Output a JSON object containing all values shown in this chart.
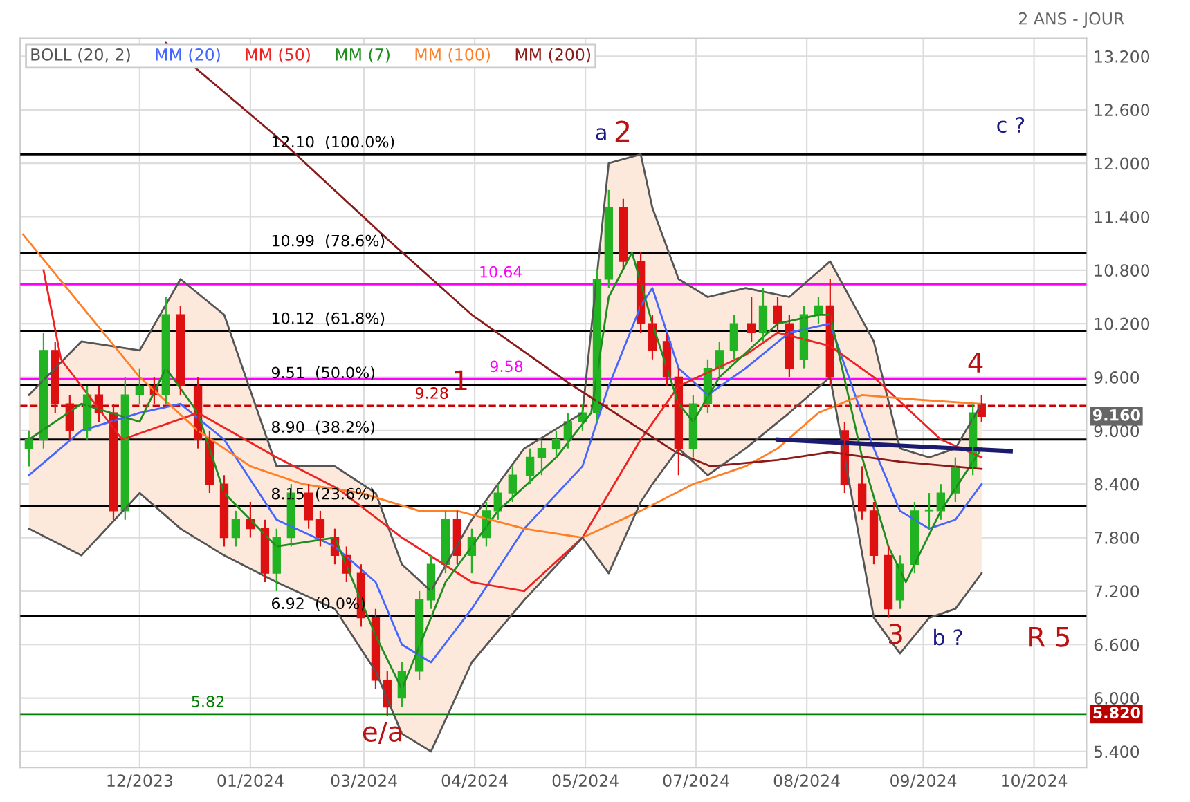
{
  "chart_data": {
    "type": "candlestick",
    "subtitle": "2 ANS - JOUR",
    "x": [
      "2023-11-15",
      "2023-11-20",
      "2023-11-24",
      "2023-11-29",
      "2023-12-05",
      "2023-12-09",
      "2023-12-14",
      "2023-12-18",
      "2023-12-23",
      "2023-12-28",
      "2024-01-01",
      "2024-01-06",
      "2024-01-12",
      "2024-01-16",
      "2024-01-21",
      "2024-01-25",
      "2024-01-30",
      "2024-02-04",
      "2024-02-08",
      "2024-02-13",
      "2024-02-19",
      "2024-02-23",
      "2024-02-28",
      "2024-03-03",
      "2024-03-08",
      "2024-03-13",
      "2024-03-17",
      "2024-03-22",
      "2024-03-28",
      "2024-04-01",
      "2024-04-06",
      "2024-04-10",
      "2024-04-15",
      "2024-04-20",
      "2024-04-24",
      "2024-04-29",
      "2024-05-05",
      "2024-05-09",
      "2024-05-14",
      "2024-05-18",
      "2024-05-23",
      "2024-05-28",
      "2024-06-01",
      "2024-06-06",
      "2024-06-12",
      "2024-06-16",
      "2024-06-21",
      "2024-06-25",
      "2024-06-30",
      "2024-07-05",
      "2024-07-09",
      "2024-07-14",
      "2024-07-20",
      "2024-07-24",
      "2024-07-29",
      "2024-08-02",
      "2024-08-07",
      "2024-08-12",
      "2024-08-16",
      "2024-08-21",
      "2024-08-27",
      "2024-08-31",
      "2024-09-05",
      "2024-09-09",
      "2024-09-14",
      "2024-09-19",
      "2024-09-23",
      "2024-09-28",
      "2024-10-04",
      "2024-10-07"
    ],
    "ohlc": [
      [
        8.8,
        9.0,
        8.6,
        8.9
      ],
      [
        8.9,
        10.1,
        8.8,
        9.9
      ],
      [
        9.9,
        10.0,
        9.2,
        9.3
      ],
      [
        9.3,
        9.4,
        8.9,
        9.0
      ],
      [
        9.0,
        9.5,
        8.9,
        9.4
      ],
      [
        9.4,
        9.5,
        9.1,
        9.2
      ],
      [
        9.2,
        9.3,
        8.0,
        8.1
      ],
      [
        8.1,
        9.6,
        8.0,
        9.4
      ],
      [
        9.4,
        9.7,
        9.3,
        9.5
      ],
      [
        9.5,
        9.6,
        9.3,
        9.4
      ],
      [
        9.4,
        10.5,
        9.3,
        10.3
      ],
      [
        10.3,
        10.4,
        9.4,
        9.5
      ],
      [
        9.5,
        9.6,
        8.8,
        8.9
      ],
      [
        8.9,
        9.0,
        8.3,
        8.4
      ],
      [
        8.4,
        8.5,
        7.7,
        7.8
      ],
      [
        7.8,
        8.1,
        7.7,
        8.0
      ],
      [
        8.0,
        8.2,
        7.8,
        7.9
      ],
      [
        7.9,
        8.0,
        7.3,
        7.4
      ],
      [
        7.4,
        7.9,
        7.2,
        7.8
      ],
      [
        7.8,
        8.4,
        7.7,
        8.3
      ],
      [
        8.3,
        8.4,
        7.9,
        8.0
      ],
      [
        8.0,
        8.1,
        7.7,
        7.8
      ],
      [
        7.8,
        7.9,
        7.5,
        7.6
      ],
      [
        7.6,
        7.7,
        7.3,
        7.4
      ],
      [
        7.4,
        7.5,
        6.8,
        6.9
      ],
      [
        6.9,
        7.0,
        6.1,
        6.2
      ],
      [
        6.2,
        6.3,
        5.8,
        5.9
      ],
      [
        6.0,
        6.4,
        5.9,
        6.3
      ],
      [
        6.3,
        7.2,
        6.2,
        7.1
      ],
      [
        7.1,
        7.6,
        7.0,
        7.5
      ],
      [
        7.5,
        8.1,
        7.4,
        8.0
      ],
      [
        8.0,
        8.1,
        7.5,
        7.6
      ],
      [
        7.6,
        7.9,
        7.4,
        7.8
      ],
      [
        7.8,
        8.2,
        7.7,
        8.1
      ],
      [
        8.1,
        8.4,
        8.0,
        8.3
      ],
      [
        8.3,
        8.6,
        8.2,
        8.5
      ],
      [
        8.5,
        8.8,
        8.4,
        8.7
      ],
      [
        8.7,
        8.9,
        8.5,
        8.8
      ],
      [
        8.8,
        9.0,
        8.7,
        8.9
      ],
      [
        8.9,
        9.2,
        8.8,
        9.1
      ],
      [
        9.1,
        9.3,
        9.0,
        9.2
      ],
      [
        9.2,
        10.8,
        9.1,
        10.7
      ],
      [
        10.7,
        11.7,
        10.6,
        11.5
      ],
      [
        11.5,
        11.6,
        10.8,
        10.9
      ],
      [
        10.9,
        11.0,
        10.1,
        10.2
      ],
      [
        10.2,
        10.3,
        9.8,
        9.9
      ],
      [
        10.0,
        10.1,
        9.5,
        9.6
      ],
      [
        9.6,
        9.7,
        8.5,
        8.8
      ],
      [
        8.8,
        9.4,
        8.7,
        9.3
      ],
      [
        9.3,
        9.8,
        9.2,
        9.7
      ],
      [
        9.7,
        10.0,
        9.6,
        9.9
      ],
      [
        9.9,
        10.3,
        9.8,
        10.2
      ],
      [
        10.2,
        10.5,
        10.0,
        10.1
      ],
      [
        10.1,
        10.6,
        10.0,
        10.4
      ],
      [
        10.4,
        10.5,
        10.1,
        10.2
      ],
      [
        10.2,
        10.3,
        9.6,
        9.7
      ],
      [
        9.8,
        10.4,
        9.7,
        10.3
      ],
      [
        10.3,
        10.5,
        10.2,
        10.4
      ],
      [
        10.4,
        10.7,
        9.5,
        9.6
      ],
      [
        9.0,
        9.1,
        8.3,
        8.4
      ],
      [
        8.4,
        8.6,
        8.0,
        8.1
      ],
      [
        8.1,
        8.2,
        7.5,
        7.6
      ],
      [
        7.6,
        7.7,
        6.9,
        7.0
      ],
      [
        7.1,
        7.6,
        7.0,
        7.5
      ],
      [
        7.5,
        8.2,
        7.4,
        8.1
      ],
      [
        8.1,
        8.3,
        7.9,
        8.1
      ],
      [
        8.1,
        8.4,
        8.0,
        8.3
      ],
      [
        8.3,
        8.7,
        8.2,
        8.6
      ],
      [
        8.6,
        9.3,
        8.5,
        9.2
      ],
      [
        9.3,
        9.4,
        9.1,
        9.16
      ]
    ],
    "series": [
      {
        "name": "BOLL (20, 2)",
        "type": "line",
        "color": "#555555",
        "x": [
          "2023-11-15",
          "2023-12-03",
          "2023-12-23",
          "2024-01-06",
          "2024-01-21",
          "2024-02-08",
          "2024-02-28",
          "2024-03-13",
          "2024-03-22",
          "2024-04-01",
          "2024-04-15",
          "2024-05-03",
          "2024-05-23",
          "2024-06-01",
          "2024-06-12",
          "2024-06-16",
          "2024-06-25",
          "2024-07-05",
          "2024-07-18",
          "2024-08-02",
          "2024-08-16",
          "2024-08-31",
          "2024-09-09",
          "2024-09-19",
          "2024-09-28",
          "2024-10-07"
        ],
        "values": [
          9.4,
          10.0,
          9.9,
          10.7,
          10.3,
          8.6,
          8.6,
          8.3,
          7.5,
          7.2,
          8.0,
          8.8,
          9.2,
          12.0,
          12.1,
          11.5,
          10.7,
          10.5,
          10.6,
          10.5,
          10.9,
          10.0,
          8.8,
          8.7,
          8.8,
          9.3
        ]
      },
      {
        "name": "MM (20)",
        "type": "line",
        "color": "#4466ff",
        "x": [
          "2023-11-15",
          "2023-12-03",
          "2023-12-23",
          "2024-01-06",
          "2024-01-21",
          "2024-02-08",
          "2024-02-28",
          "2024-03-13",
          "2024-03-22",
          "2024-04-01",
          "2024-04-15",
          "2024-05-03",
          "2024-05-23",
          "2024-06-01",
          "2024-06-12",
          "2024-06-16",
          "2024-06-25",
          "2024-07-05",
          "2024-07-18",
          "2024-08-02",
          "2024-08-16",
          "2024-08-31",
          "2024-09-09",
          "2024-09-19",
          "2024-09-28",
          "2024-10-07"
        ],
        "values": [
          8.5,
          9.0,
          9.2,
          9.3,
          8.9,
          8.0,
          7.7,
          7.3,
          6.6,
          6.4,
          7.0,
          7.9,
          8.6,
          9.5,
          10.4,
          10.6,
          9.7,
          9.4,
          9.7,
          10.1,
          10.2,
          8.8,
          8.1,
          7.9,
          8.0,
          8.4
        ],
        "lower": [
          7.9,
          7.6,
          8.3,
          7.9,
          7.6,
          7.3,
          7.0,
          6.3,
          5.6,
          5.4,
          6.4,
          7.1,
          7.8,
          7.4,
          8.2,
          8.4,
          8.8,
          8.5,
          8.8,
          9.2,
          9.6,
          6.9,
          6.5,
          6.9,
          7.0,
          7.4
        ],
        "upper": [
          9.4,
          10.0,
          9.9,
          10.7,
          10.3,
          8.6,
          8.6,
          8.3,
          7.5,
          7.2,
          8.0,
          8.8,
          9.2,
          12.0,
          12.1,
          11.5,
          10.7,
          10.5,
          10.6,
          10.5,
          10.9,
          10.0,
          8.8,
          8.7,
          8.8,
          9.3
        ]
      },
      {
        "name": "MM (50)",
        "type": "line",
        "color": "#ee2222",
        "x": [
          "2023-11-20",
          "2023-11-26",
          "2023-12-17",
          "2024-01-12",
          "2024-02-08",
          "2024-02-29",
          "2024-03-22",
          "2024-04-15",
          "2024-05-03",
          "2024-05-23",
          "2024-06-12",
          "2024-06-25",
          "2024-07-18",
          "2024-07-29",
          "2024-08-16",
          "2024-08-31",
          "2024-09-23",
          "2024-10-07"
        ],
        "values": [
          10.8,
          9.8,
          8.9,
          9.2,
          8.7,
          8.35,
          7.8,
          7.3,
          7.2,
          7.8,
          8.9,
          9.5,
          9.85,
          10.1,
          9.95,
          9.6,
          8.9,
          8.7
        ]
      },
      {
        "name": "MM (7)",
        "type": "line",
        "color": "#1e8c1e",
        "x": [
          "2023-11-15",
          "2023-12-03",
          "2023-12-23",
          "2024-01-01",
          "2024-01-12",
          "2024-01-21",
          "2024-02-08",
          "2024-02-28",
          "2024-03-13",
          "2024-03-22",
          "2024-04-06",
          "2024-04-24",
          "2024-05-14",
          "2024-05-26",
          "2024-06-01",
          "2024-06-09",
          "2024-06-16",
          "2024-06-25",
          "2024-06-30",
          "2024-07-09",
          "2024-07-29",
          "2024-08-12",
          "2024-08-16",
          "2024-08-27",
          "2024-09-05",
          "2024-09-11",
          "2024-09-23",
          "2024-10-07"
        ],
        "values": [
          8.9,
          9.3,
          9.1,
          9.7,
          9.2,
          8.3,
          7.7,
          7.8,
          6.7,
          6.1,
          7.3,
          8.1,
          8.7,
          9.2,
          10.5,
          11.0,
          10.2,
          9.3,
          9.1,
          9.6,
          10.2,
          10.3,
          10.3,
          8.7,
          7.7,
          7.3,
          8.1,
          8.8
        ]
      },
      {
        "name": "MM (100)",
        "type": "line",
        "color": "#ff7f27",
        "x": [
          "2023-11-13",
          "2023-12-03",
          "2023-12-23",
          "2024-01-12",
          "2024-01-30",
          "2024-02-17",
          "2024-03-08",
          "2024-03-28",
          "2024-04-10",
          "2024-05-03",
          "2024-05-23",
          "2024-06-12",
          "2024-06-30",
          "2024-07-18",
          "2024-07-29",
          "2024-08-12",
          "2024-08-27",
          "2024-09-14",
          "2024-10-07"
        ],
        "values": [
          11.2,
          10.4,
          9.6,
          9.0,
          8.6,
          8.4,
          8.3,
          8.1,
          8.1,
          7.9,
          7.8,
          8.1,
          8.4,
          8.6,
          8.8,
          9.2,
          9.4,
          9.35,
          9.3
        ]
      },
      {
        "name": "MM (200)",
        "type": "line",
        "color": "#8b1a1a",
        "x": [
          "2024-01-01",
          "2024-02-08",
          "2024-03-17",
          "2024-04-15",
          "2024-05-18",
          "2024-06-24",
          "2024-07-06",
          "2024-07-29",
          "2024-08-16",
          "2024-09-09",
          "2024-10-07"
        ],
        "values": [
          13.35,
          12.3,
          11.15,
          10.3,
          9.54,
          8.76,
          8.6,
          8.67,
          8.76,
          8.65,
          8.57
        ]
      },
      {
        "type": "line",
        "color": "#555555",
        "x": [
          "2023-11-15",
          "2023-12-03",
          "2023-12-23",
          "2024-01-06",
          "2024-01-21",
          "2024-02-08",
          "2024-02-28",
          "2024-03-13",
          "2024-03-22",
          "2024-04-01",
          "2024-04-15",
          "2024-05-03",
          "2024-05-23",
          "2024-06-01",
          "2024-06-12",
          "2024-06-16",
          "2024-06-25",
          "2024-07-05",
          "2024-07-18",
          "2024-08-02",
          "2024-08-16",
          "2024-08-31",
          "2024-09-09",
          "2024-09-19",
          "2024-09-28",
          "2024-10-07"
        ],
        "values": [
          7.9,
          7.6,
          8.3,
          7.9,
          7.6,
          7.3,
          7.0,
          6.3,
          5.6,
          5.4,
          6.4,
          7.1,
          7.8,
          7.4,
          8.2,
          8.4,
          8.8,
          8.5,
          8.8,
          9.2,
          9.6,
          6.9,
          6.5,
          6.9,
          7.0,
          7.4
        ]
      },
      {
        "type": "line",
        "color": "#1a1a6e",
        "x": [
          "2024-07-29",
          "2024-10-17"
        ],
        "values": [
          8.9,
          8.77
        ]
      }
    ],
    "ref_lines": [
      {
        "axis": "y",
        "value": 12.1,
        "label": "12.10  (100.0%)",
        "color": "#000000",
        "line_style": "solid"
      },
      {
        "axis": "y",
        "value": 10.99,
        "label": "10.99  (78.6%)",
        "color": "#000000",
        "line_style": "solid"
      },
      {
        "axis": "y",
        "value": 10.12,
        "label": "10.12  (61.8%)",
        "color": "#000000",
        "line_style": "solid"
      },
      {
        "axis": "y",
        "value": 9.51,
        "label": "9.51  (50.0%)",
        "color": "#000000",
        "line_style": "solid"
      },
      {
        "axis": "y",
        "value": 8.9,
        "label": "8.90  (38.2%)",
        "color": "#000000",
        "line_style": "solid"
      },
      {
        "axis": "y",
        "value": 8.15,
        "label": "8.15  (23.6%)",
        "color": "#000000",
        "line_style": "solid"
      },
      {
        "axis": "y",
        "value": 6.92,
        "label": "6.92  (0.0%)",
        "color": "#000000",
        "line_style": "solid"
      },
      {
        "axis": "y",
        "value": 10.64,
        "label": "10.64",
        "color": "#ff00ff",
        "line_style": "solid"
      },
      {
        "axis": "y",
        "value": 9.58,
        "label": "9.58",
        "color": "#ff00ff",
        "line_style": "solid"
      },
      {
        "axis": "y",
        "value": 9.28,
        "label": "9.28",
        "color": "#cc0000",
        "line_style": "dashed"
      },
      {
        "axis": "y",
        "value": 5.82,
        "label": "5.82",
        "color": "#008000",
        "line_style": "solid"
      }
    ],
    "annotations": [
      "a",
      "2",
      "1",
      "4",
      "3",
      "b ?",
      "c ?",
      "R 5",
      "e/a",
      "9.160",
      {
        "text": "5.820",
        "x": "2024-11-12",
        "y": 5.82
      }
    ],
    "xlim": [
      "2023-11-12",
      "2024-11-12"
    ],
    "ylim": [
      5.22,
      13.4
    ],
    "xticks": [
      {
        "value": "2023-12-23",
        "label": "12/2023"
      },
      {
        "value": "2024-01-30",
        "label": "01/2024"
      },
      {
        "value": "2024-03-09",
        "label": "03/2024"
      },
      {
        "value": "2024-04-16",
        "label": "04/2024"
      },
      {
        "value": "2024-05-24",
        "label": "05/2024"
      },
      {
        "value": "2024-07-01",
        "label": "07/2024"
      },
      {
        "value": "2024-08-08",
        "label": "08/2024"
      },
      {
        "value": "2024-09-17",
        "label": "09/2024"
      },
      {
        "value": "2024-10-25",
        "label": "10/2024"
      }
    ],
    "yticks": [
      {
        "value": 5.4,
        "label": "5.400"
      },
      {
        "value": 6.0,
        "label": "6.000"
      },
      {
        "value": 6.6,
        "label": "6.600"
      },
      {
        "value": 7.2,
        "label": "7.200"
      },
      {
        "value": 7.8,
        "label": "7.800"
      },
      {
        "value": 8.4,
        "label": "8.400"
      },
      {
        "value": 9.0,
        "label": "9.000"
      },
      {
        "value": 9.6,
        "label": "9.600"
      },
      {
        "value": 10.2,
        "label": "10.200"
      },
      {
        "value": 10.8,
        "label": "10.800"
      },
      {
        "value": 11.4,
        "label": "11.400"
      },
      {
        "value": 12.0,
        "label": "12.000"
      },
      {
        "value": 12.6,
        "label": "12.600"
      },
      {
        "value": 13.2,
        "label": "13.200"
      }
    ],
    "grid": true,
    "legend": "top left"
  }
}
